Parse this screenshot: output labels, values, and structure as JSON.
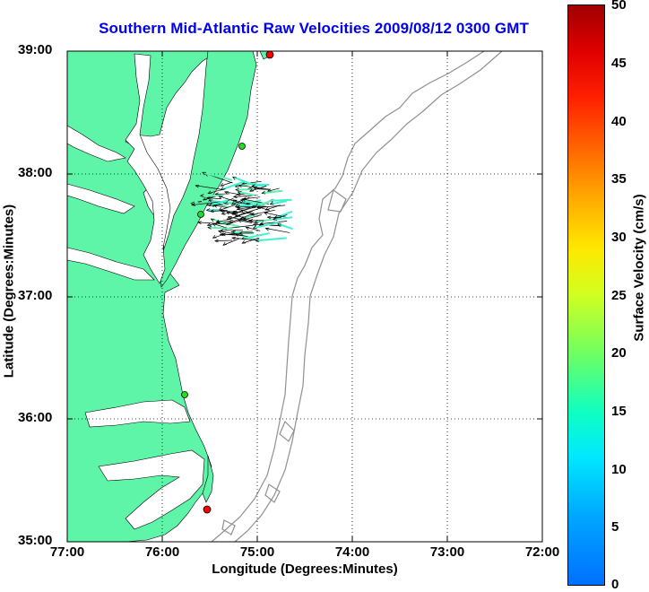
{
  "title": "Southern Mid-Atlantic Raw Velocities 2009/08/12 0300 GMT",
  "x_axis": {
    "label": "Longitude (Degrees:Minutes)",
    "ticks": [
      "77:00",
      "76:00",
      "75:00",
      "74:00",
      "73:00",
      "72:00"
    ]
  },
  "y_axis": {
    "label": "Latitude (Degrees:Minutes)",
    "ticks": [
      "39:00",
      "38:00",
      "37:00",
      "36:00",
      "35:00"
    ]
  },
  "colorbar": {
    "label": "Surface Velocity (cm/s)",
    "ticks": [
      "50",
      "45",
      "40",
      "35",
      "30",
      "25",
      "20",
      "15",
      "10",
      "5",
      "0"
    ],
    "range": [
      0,
      50
    ],
    "colormap": "jet"
  },
  "colors": {
    "land": "#5ff5a8",
    "title": "#0000ee",
    "station_red": "#ff0000",
    "station_green": "#22dd22",
    "bathymetry": "#909090"
  },
  "map": {
    "extent_lon": [
      -77.0,
      -72.0
    ],
    "extent_lat": [
      35.0,
      39.0
    ],
    "grid": "dotted",
    "stations": [
      {
        "lon": -74.88,
        "lat": 38.97,
        "color": "red"
      },
      {
        "lon": -75.17,
        "lat": 38.22,
        "color": "green"
      },
      {
        "lon": -75.62,
        "lat": 37.65,
        "color": "green"
      },
      {
        "lon": -75.72,
        "lat": 36.18,
        "color": "green"
      },
      {
        "lon": -75.48,
        "lat": 35.26,
        "color": "red"
      }
    ],
    "vector_field_region": {
      "lon": [
        -75.4,
        -74.6
      ],
      "lat": [
        37.45,
        37.95
      ]
    }
  }
}
